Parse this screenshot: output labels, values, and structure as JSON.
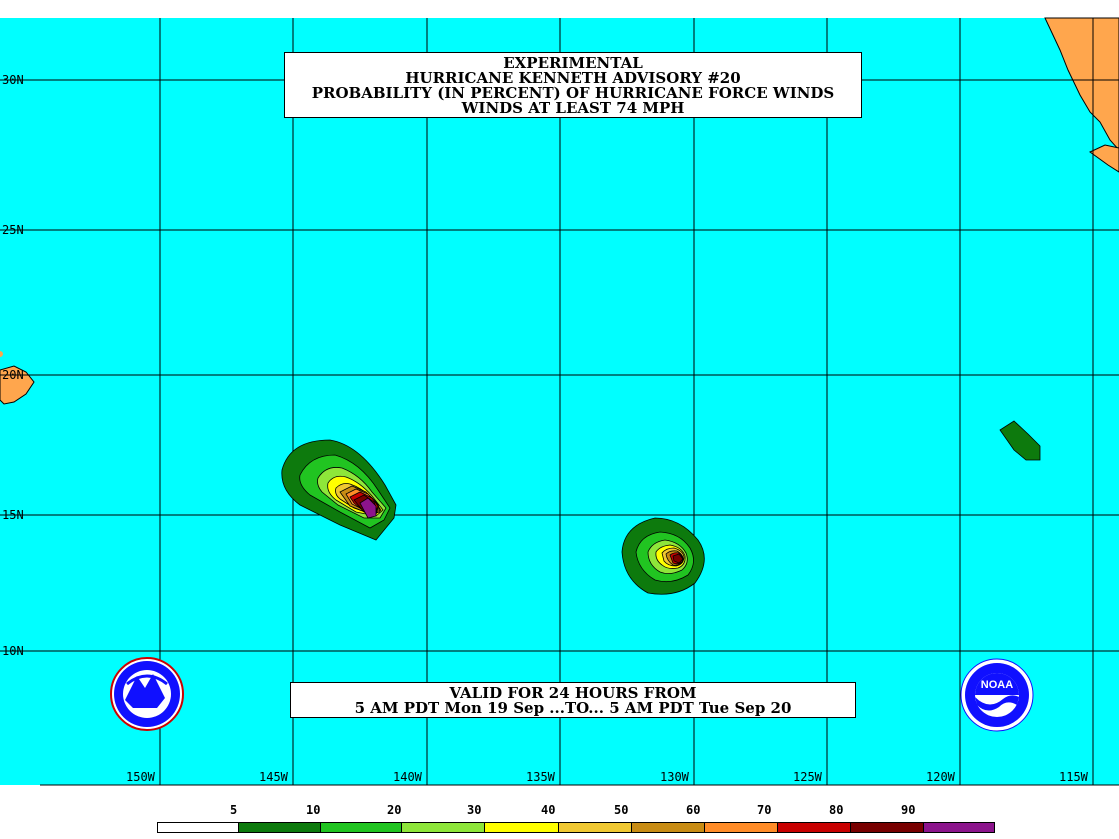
{
  "title_lines": [
    "EXPERIMENTAL",
    "HURRICANE KENNETH ADVISORY #20",
    "PROBABILITY (IN PERCENT) OF HURRICANE FORCE WINDS",
    "WINDS AT LEAST 74 MPH"
  ],
  "valid_lines": [
    "VALID FOR 24 HOURS FROM",
    "5 AM PDT Mon 19 Sep ...TO... 5 AM PDT Tue Sep 20"
  ],
  "latitude_labels": [
    "30N",
    "25N",
    "20N",
    "15N",
    "10N"
  ],
  "longitude_labels": [
    "150W",
    "145W",
    "140W",
    "135W",
    "130W",
    "125W",
    "120W",
    "115W"
  ],
  "legend": {
    "ticks": [
      "5",
      "10",
      "20",
      "30",
      "40",
      "50",
      "60",
      "70",
      "80",
      "90"
    ],
    "colors": [
      "#ffffff",
      "#0d7a0d",
      "#21c421",
      "#8ee63a",
      "#ffff00",
      "#f0c832",
      "#c88c14",
      "#ff8c28",
      "#c80000",
      "#780000",
      "#8c148c"
    ]
  },
  "colors": {
    "ocean": "#00ffff",
    "land": "#ffa64d",
    "grid": "#000000"
  },
  "logos": {
    "left": "national-weather-service-logo",
    "right_text": "NOAA"
  }
}
